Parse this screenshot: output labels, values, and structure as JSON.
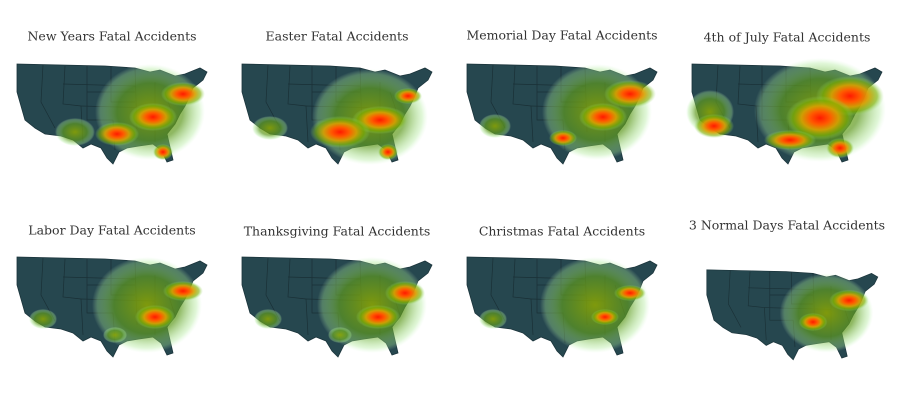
{
  "panels": [
    {
      "title": "New Years Fatal Accidents"
    },
    {
      "title": "Easter Fatal Accidents"
    },
    {
      "title": "Memorial Day Fatal Accidents"
    },
    {
      "title": "4th of July Fatal Accidents"
    },
    {
      "title": "Labor Day Fatal Accidents"
    },
    {
      "title": "Thanksgiving Fatal Accidents"
    },
    {
      "title": "Christmas Fatal Accidents"
    },
    {
      "title": "3 Normal Days Fatal Accidents"
    }
  ]
}
